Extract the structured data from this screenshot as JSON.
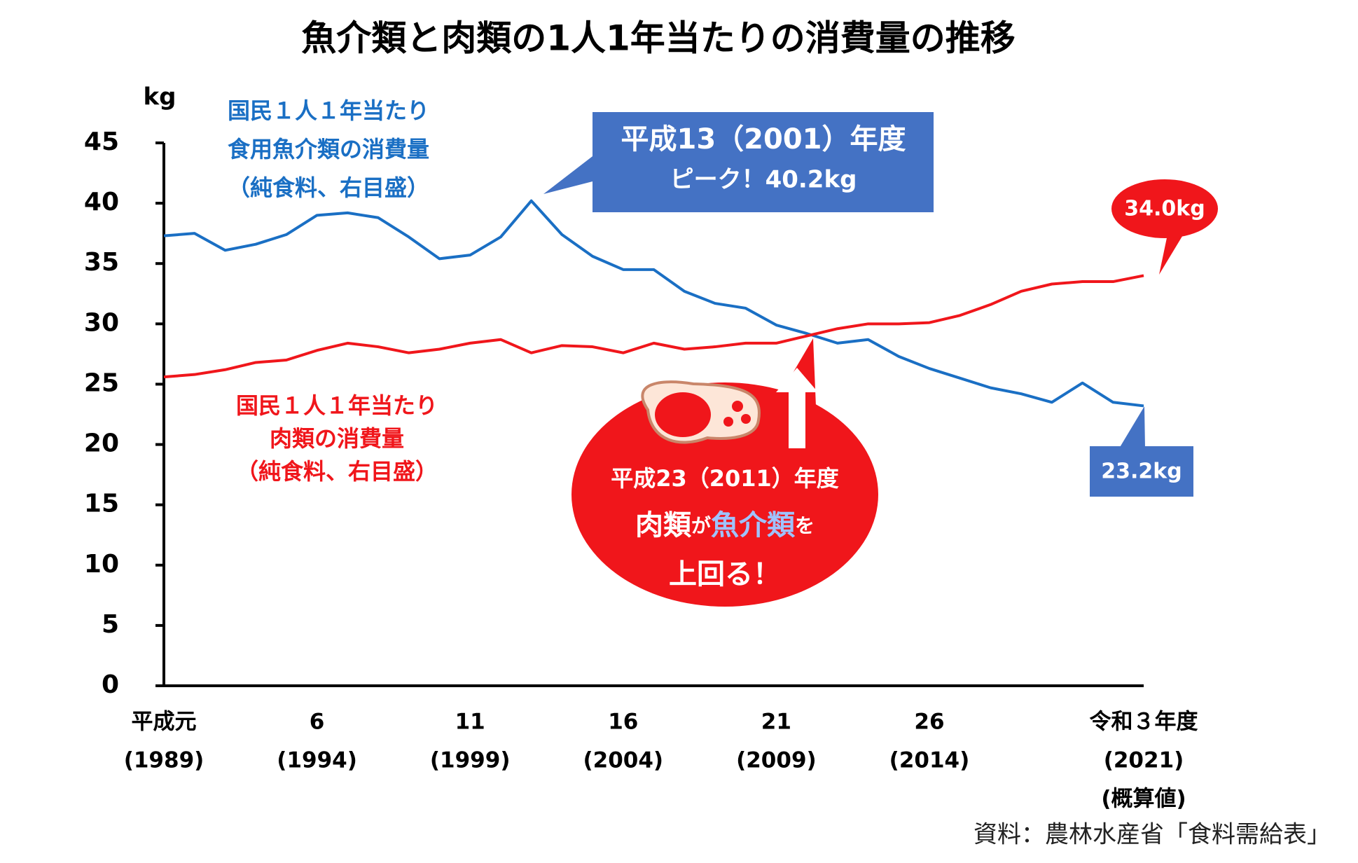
{
  "chart_data": {
    "type": "line",
    "title": "魚介類と肉類の1人1年当たりの消費量の推移",
    "y_unit": "kg",
    "x": [
      1989,
      1990,
      1991,
      1992,
      1993,
      1994,
      1995,
      1996,
      1997,
      1998,
      1999,
      2000,
      2001,
      2002,
      2003,
      2004,
      2005,
      2006,
      2007,
      2008,
      2009,
      2010,
      2011,
      2012,
      2013,
      2014,
      2015,
      2016,
      2017,
      2018,
      2019,
      2020,
      2021
    ],
    "series": [
      {
        "name": "fish",
        "color": "#1a6fc4",
        "values": [
          37.3,
          37.5,
          36.1,
          36.6,
          37.4,
          39.0,
          39.2,
          38.8,
          37.2,
          35.4,
          35.7,
          37.2,
          40.2,
          37.4,
          35.6,
          34.5,
          34.5,
          32.7,
          31.7,
          31.3,
          29.9,
          29.2,
          28.4,
          28.7,
          27.3,
          26.3,
          25.5,
          24.7,
          24.2,
          23.5,
          25.1,
          23.5,
          23.2
        ]
      },
      {
        "name": "meat",
        "color": "#f0161b",
        "values": [
          25.6,
          25.8,
          26.2,
          26.8,
          27.0,
          27.8,
          28.4,
          28.1,
          27.6,
          27.9,
          28.4,
          28.7,
          27.6,
          28.2,
          28.1,
          27.6,
          28.4,
          27.9,
          28.1,
          28.4,
          28.4,
          29.0,
          29.6,
          30.0,
          30.0,
          30.1,
          30.7,
          31.6,
          32.7,
          33.3,
          33.5,
          33.5,
          34.0
        ]
      }
    ],
    "xlim": [
      1989,
      2021
    ],
    "ylim": [
      0,
      45
    ],
    "yticks": [
      0,
      5,
      10,
      15,
      20,
      25,
      30,
      35,
      40,
      45
    ],
    "xticks": [
      {
        "value": 1989,
        "label": [
          "平成元",
          "(1989)"
        ]
      },
      {
        "value": 1994,
        "label": [
          "6",
          "(1994)"
        ]
      },
      {
        "value": 1999,
        "label": [
          "11",
          "(1999)"
        ]
      },
      {
        "value": 2004,
        "label": [
          "16",
          "(2004)"
        ]
      },
      {
        "value": 2009,
        "label": [
          "21",
          "(2009)"
        ]
      },
      {
        "value": 2014,
        "label": [
          "26",
          "(2014)"
        ]
      },
      {
        "value": 2021,
        "label": [
          "令和３年度",
          "(2021)",
          "(概算値)"
        ]
      }
    ],
    "annotations": {
      "fish_legend": [
        "国民１人１年当たり",
        "食用魚介類の消費量",
        "（純食料、右目盛）"
      ],
      "meat_legend": [
        "国民１人１年当たり",
        "肉類の消費量",
        "（純食料、右目盛）"
      ],
      "peak": [
        "平成13（2001）年度",
        "ピーク！40.2kg"
      ],
      "meat_end": "34.0kg",
      "fish_end": "23.2kg",
      "crossover": {
        "line1": "平成23（2011）年度",
        "line2": [
          "肉類",
          "が",
          "魚介類",
          "を"
        ],
        "line3": "上回る！"
      }
    },
    "source": "資料：農林水産省「食料需給表」"
  }
}
